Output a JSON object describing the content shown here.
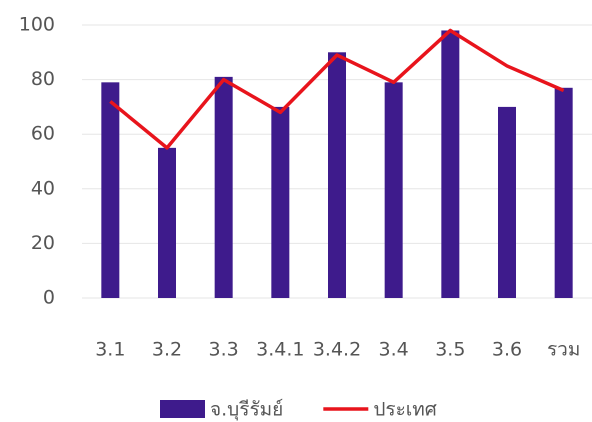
{
  "chart_data": {
    "type": "combo",
    "categories": [
      "3.1",
      "3.2",
      "3.3",
      "3.4.1",
      "3.4.2",
      "3.4",
      "3.5",
      "3.6",
      "รวม"
    ],
    "series": [
      {
        "name": "จ.บุรีรัมย์",
        "type": "bar",
        "color": "#3e1b8c",
        "values": [
          79,
          55,
          81,
          70,
          90,
          79,
          98,
          70,
          77
        ]
      },
      {
        "name": "ประเทศ",
        "type": "line",
        "color": "#e8141c",
        "values": [
          72,
          55,
          80,
          68,
          89,
          79,
          98,
          85,
          76
        ]
      }
    ],
    "ylim": [
      0,
      100
    ],
    "yticks": [
      0,
      20,
      40,
      60,
      80,
      100
    ],
    "grid": true
  }
}
